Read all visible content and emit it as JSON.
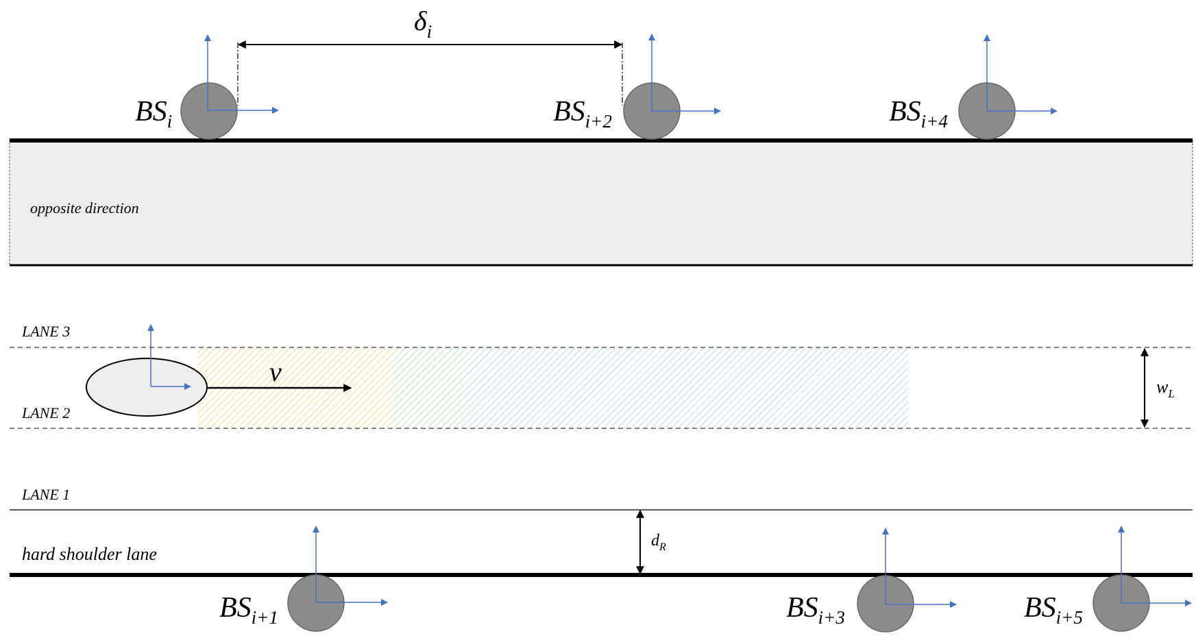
{
  "figure": {
    "distance_label": {
      "main": "δ",
      "sub": "i"
    },
    "opposite_direction": "opposite direction",
    "lanes": {
      "lane3": "LANE 3",
      "lane2": "LANE 2",
      "lane1": "LANE 1",
      "shoulder": "hard shoulder lane"
    },
    "velocity_label": "v",
    "lane_width_label": {
      "main": "w",
      "sub": "L"
    },
    "road_distance_label": {
      "main": "d",
      "sub": "R"
    },
    "base_stations": [
      {
        "id": "bs-i",
        "main": "BS",
        "sub": "i"
      },
      {
        "id": "bs-i2",
        "main": "BS",
        "sub": "i+2"
      },
      {
        "id": "bs-i4",
        "main": "BS",
        "sub": "i+4"
      },
      {
        "id": "bs-i1",
        "main": "BS",
        "sub": "i+1"
      },
      {
        "id": "bs-i3",
        "main": "BS",
        "sub": "i+3"
      },
      {
        "id": "bs-i5",
        "main": "BS",
        "sub": "i+5"
      }
    ],
    "colors": {
      "axis_blue": "#4472C4",
      "bs_fill": "#8C8C8C",
      "road_fill": "#EDEDED",
      "hatch_yellow": "#F2D46B",
      "hatch_blue": "#A9CFE0",
      "hatch_green": "#A8D8A8"
    }
  }
}
